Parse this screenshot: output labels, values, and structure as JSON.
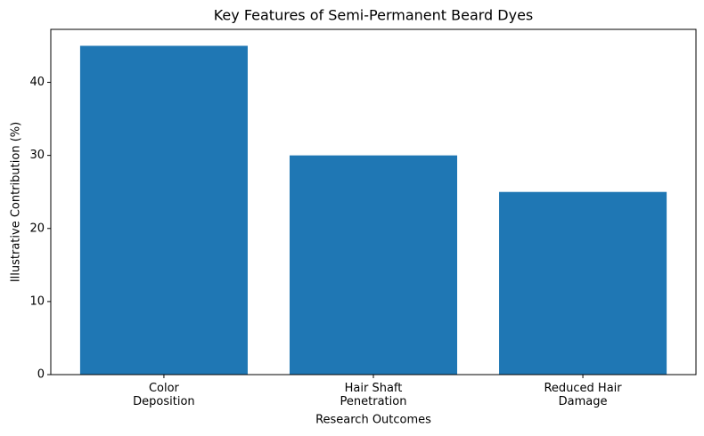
{
  "chart_data": {
    "type": "bar",
    "title": "Key Features of Semi-Permanent Beard Dyes",
    "x_label": "Research Outcomes",
    "y_label": "Illustrative Contribution (%)",
    "categories": [
      "Color\nDeposition",
      "Hair Shaft\nPenetration",
      "Reduced Hair\nDamage"
    ],
    "values": [
      45,
      30,
      25
    ],
    "color": "#1f77b4",
    "ylim": [
      0,
      47.25
    ],
    "yticks": [
      0,
      10,
      20,
      30,
      40
    ],
    "grid": false
  }
}
